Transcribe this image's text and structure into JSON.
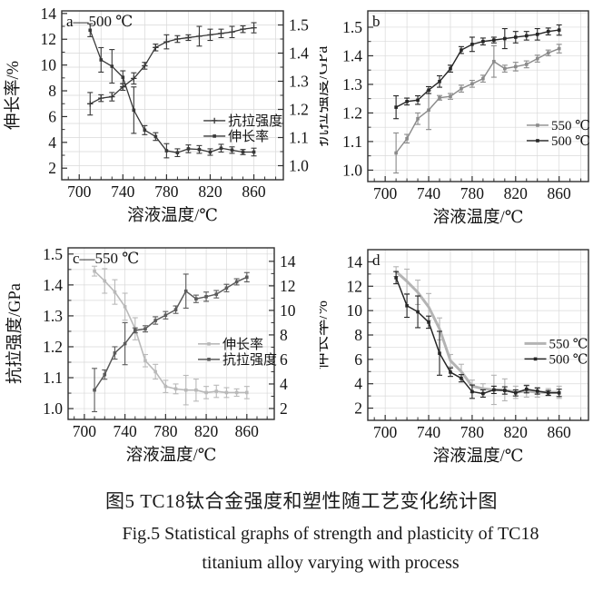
{
  "figure": {
    "caption_zh": "图5 TC18钛合金强度和塑性随工艺变化统计图",
    "caption_en_line1": "Fig.5 Statistical graphs of strength and plasticity of TC18",
    "caption_en_line2": "titanium alloy varying with process"
  },
  "colors": {
    "spine": "#2f2f2f",
    "grid": "#d9d9d9",
    "text": "#141414",
    "dark_series": "#383838",
    "black_series": "#262626",
    "gray_series": "#8a8a8a",
    "light_series": "#b9b9b9"
  },
  "chart_data": [
    {
      "id": "a",
      "type": "line",
      "panel_label": "a—500 ℃",
      "x_title": "溶液温度/℃",
      "x": [
        710,
        720,
        730,
        740,
        750,
        760,
        770,
        780,
        790,
        800,
        810,
        820,
        830,
        840,
        850,
        860
      ],
      "x_axis": {
        "range": [
          684,
          887
        ],
        "major_ticks": [
          700,
          740,
          780,
          820,
          860
        ],
        "tick_labels": [
          "700",
          "740",
          "780",
          "820",
          "860"
        ],
        "minor_step": 10
      },
      "y_left": {
        "title": "伸长率/%",
        "range": [
          1.1,
          14.2
        ],
        "ticks": [
          2,
          4,
          6,
          8,
          10,
          12,
          14
        ],
        "tick_labels": [
          "2",
          "4",
          "6",
          "8",
          "10",
          "12",
          "14"
        ]
      },
      "y_right": {
        "title": "",
        "range": [
          0.95,
          1.55
        ],
        "ticks": [
          1.0,
          1.1,
          1.2,
          1.3,
          1.4,
          1.5
        ],
        "tick_labels": [
          "1.0",
          "1.1",
          "1.2",
          "1.3",
          "1.4",
          "1.5"
        ]
      },
      "grid": {
        "on": true,
        "x_step": 20,
        "y_axis": "right",
        "y_step": 0.05
      },
      "series": [
        {
          "name": "抗拉强度",
          "axis": "right",
          "color": "#383838",
          "line_width": 1.3,
          "marker": "plus",
          "values": [
            1.22,
            1.24,
            1.245,
            1.28,
            1.31,
            1.355,
            1.42,
            1.44,
            1.45,
            1.455,
            1.46,
            1.465,
            1.47,
            1.475,
            1.485,
            1.49
          ],
          "errors": [
            0.04,
            0.012,
            0.015,
            0.012,
            0.02,
            0.012,
            0.012,
            0.025,
            0.012,
            0.01,
            0.035,
            0.02,
            0.015,
            0.02,
            0.012,
            0.018
          ]
        },
        {
          "name": "伸长率",
          "axis": "left",
          "color": "#383838",
          "line_width": 1.3,
          "marker": "square",
          "values": [
            12.7,
            10.4,
            9.9,
            9.05,
            6.5,
            4.95,
            4.45,
            3.35,
            3.2,
            3.5,
            3.45,
            3.25,
            3.55,
            3.4,
            3.25,
            3.25
          ],
          "errors": [
            0.5,
            0.95,
            1.3,
            0.5,
            1.8,
            0.35,
            0.3,
            0.55,
            0.3,
            0.3,
            0.3,
            0.25,
            0.3,
            0.25,
            0.2,
            0.3
          ]
        }
      ],
      "legend": {
        "fx": 0.64,
        "fy": 0.65
      }
    },
    {
      "id": "b",
      "type": "line",
      "panel_label": "b",
      "x_title": "溶液温度/℃",
      "x": [
        710,
        720,
        730,
        740,
        750,
        760,
        770,
        780,
        790,
        800,
        810,
        820,
        830,
        840,
        850,
        860
      ],
      "x_axis": {
        "range": [
          684,
          887
        ],
        "major_ticks": [
          700,
          740,
          780,
          820,
          860
        ],
        "tick_labels": [
          "700",
          "740",
          "780",
          "820",
          "860"
        ],
        "minor_step": 10
      },
      "y_left": {
        "title": "抗拉强度/GPa",
        "range": [
          0.96,
          1.557
        ],
        "ticks": [
          1.0,
          1.1,
          1.2,
          1.3,
          1.4,
          1.5
        ],
        "tick_labels": [
          "1.0",
          "1.1",
          "1.2",
          "1.3",
          "1.4",
          "1.5"
        ]
      },
      "grid": {
        "on": true,
        "x_step": 20,
        "y_axis": "left",
        "y_step": 0.05
      },
      "series": [
        {
          "name": "550 ℃",
          "axis": "left",
          "color": "#8a8a8a",
          "line_width": 1.4,
          "marker": "square",
          "values": [
            1.06,
            1.11,
            1.18,
            1.21,
            1.253,
            1.258,
            1.285,
            1.302,
            1.32,
            1.38,
            1.355,
            1.362,
            1.37,
            1.39,
            1.41,
            1.425
          ],
          "errors": [
            0.07,
            0.015,
            0.02,
            0.068,
            0.008,
            0.01,
            0.012,
            0.012,
            0.012,
            0.055,
            0.012,
            0.015,
            0.012,
            0.012,
            0.01,
            0.015
          ]
        },
        {
          "name": "500 ℃",
          "axis": "left",
          "color": "#262626",
          "line_width": 1.4,
          "marker": "square",
          "values": [
            1.22,
            1.24,
            1.245,
            1.28,
            1.31,
            1.355,
            1.42,
            1.44,
            1.45,
            1.455,
            1.46,
            1.465,
            1.47,
            1.475,
            1.485,
            1.49
          ],
          "errors": [
            0.04,
            0.012,
            0.015,
            0.012,
            0.02,
            0.012,
            0.012,
            0.025,
            0.012,
            0.01,
            0.035,
            0.02,
            0.015,
            0.02,
            0.012,
            0.018
          ]
        }
      ],
      "legend": {
        "fx": 0.72,
        "fy": 0.67
      }
    },
    {
      "id": "c",
      "type": "line",
      "panel_label": "c—550 ℃",
      "x_title": "溶液温度/℃",
      "x": [
        710,
        720,
        730,
        740,
        750,
        760,
        770,
        780,
        790,
        800,
        810,
        820,
        830,
        840,
        850,
        860
      ],
      "x_axis": {
        "range": [
          684,
          887
        ],
        "major_ticks": [
          700,
          740,
          780,
          820,
          860
        ],
        "tick_labels": [
          "700",
          "740",
          "780",
          "820",
          "860"
        ],
        "minor_step": 10
      },
      "y_left": {
        "title": "抗拉强度/GPa",
        "range": [
          0.965,
          1.52
        ],
        "ticks": [
          1.0,
          1.1,
          1.2,
          1.3,
          1.4,
          1.5
        ],
        "tick_labels": [
          "1.0",
          "1.1",
          "1.2",
          "1.3",
          "1.4",
          "1.5"
        ]
      },
      "y_right": {
        "title": "",
        "range": [
          1.11,
          15.1
        ],
        "ticks": [
          2,
          4,
          6,
          8,
          10,
          12,
          14
        ],
        "tick_labels": [
          "2",
          "4",
          "6",
          "8",
          "10",
          "12",
          "14"
        ]
      },
      "grid": {
        "on": true,
        "x_step": 20,
        "y_axis": "left",
        "y_step": 0.05
      },
      "series": [
        {
          "name": "伸长率",
          "axis": "right",
          "color": "#b9b9b9",
          "line_width": 1.6,
          "marker": "square",
          "values": [
            13.2,
            12.4,
            11.5,
            10.3,
            8.5,
            5.9,
            5.0,
            3.8,
            3.6,
            3.5,
            3.5,
            3.3,
            3.4,
            3.3,
            3.3,
            3.3
          ],
          "errors": [
            0.4,
            1.0,
            1.0,
            1.1,
            0.9,
            0.5,
            0.6,
            0.5,
            0.4,
            1.2,
            0.9,
            0.5,
            0.5,
            0.4,
            0.3,
            0.5
          ]
        },
        {
          "name": "抗拉强度",
          "axis": "left",
          "color": "#5a5a5a",
          "line_width": 1.5,
          "marker": "square",
          "values": [
            1.06,
            1.11,
            1.18,
            1.21,
            1.253,
            1.258,
            1.285,
            1.302,
            1.32,
            1.38,
            1.355,
            1.362,
            1.37,
            1.39,
            1.41,
            1.425
          ],
          "errors": [
            0.07,
            0.015,
            0.02,
            0.068,
            0.008,
            0.01,
            0.012,
            0.012,
            0.012,
            0.055,
            0.012,
            0.015,
            0.012,
            0.012,
            0.01,
            0.015
          ]
        }
      ],
      "legend": {
        "fx": 0.63,
        "fy": 0.56
      }
    },
    {
      "id": "d",
      "type": "line",
      "panel_label": "d",
      "x_title": "溶液温度/℃",
      "x": [
        710,
        720,
        730,
        740,
        750,
        760,
        770,
        780,
        790,
        800,
        810,
        820,
        830,
        840,
        850,
        860
      ],
      "x_axis": {
        "range": [
          684,
          887
        ],
        "major_ticks": [
          700,
          740,
          780,
          820,
          860
        ],
        "tick_labels": [
          "700",
          "740",
          "780",
          "820",
          "860"
        ],
        "minor_step": 10
      },
      "y_left": {
        "title": "伸长率/%",
        "range": [
          1.0,
          15.0
        ],
        "ticks": [
          2,
          4,
          6,
          8,
          10,
          12,
          14
        ],
        "tick_labels": [
          "2",
          "4",
          "6",
          "8",
          "10",
          "12",
          "14"
        ]
      },
      "grid": {
        "on": true,
        "x_step": 20,
        "y_axis": "left",
        "y_step": 1
      },
      "series": [
        {
          "name": "550 ℃",
          "axis": "left",
          "color": "#b4b4b4",
          "line_width": 3,
          "marker": "none",
          "values": [
            13.2,
            12.4,
            11.5,
            10.3,
            8.5,
            5.9,
            5.0,
            3.8,
            3.6,
            3.5,
            3.5,
            3.3,
            3.4,
            3.3,
            3.3,
            3.3
          ],
          "errors": [
            0.4,
            1.0,
            1.0,
            1.1,
            0.9,
            0.5,
            0.6,
            0.5,
            0.4,
            1.2,
            0.9,
            0.5,
            0.5,
            0.4,
            0.3,
            0.5
          ]
        },
        {
          "name": "500 ℃",
          "axis": "left",
          "color": "#262626",
          "line_width": 1.5,
          "marker": "square",
          "values": [
            12.7,
            10.4,
            9.9,
            9.05,
            6.5,
            4.95,
            4.45,
            3.35,
            3.2,
            3.5,
            3.45,
            3.25,
            3.55,
            3.4,
            3.25,
            3.25
          ],
          "errors": [
            0.5,
            0.95,
            1.3,
            0.5,
            1.8,
            0.35,
            0.3,
            0.55,
            0.3,
            0.3,
            0.3,
            0.25,
            0.3,
            0.25,
            0.2,
            0.3
          ]
        }
      ],
      "legend": {
        "fx": 0.71,
        "fy": 0.55
      }
    }
  ]
}
